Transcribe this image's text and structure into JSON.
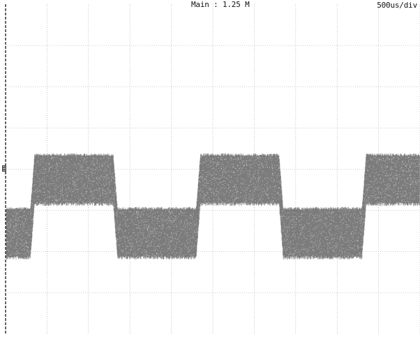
{
  "header": {
    "memory_label": "Main : 1.25 M",
    "timebase_label": "500us/div"
  },
  "display": {
    "background_color": "#ffffff",
    "grid_color": "#9a9a9a",
    "trace_color": "#6e6e6e",
    "divisions_x": 10,
    "divisions_y": 8
  },
  "waveform": {
    "type": "noisy-square-wave",
    "period_divisions": 4,
    "first_rising_edge_division": 0.6,
    "high_level_divisions": 4.3,
    "low_level_divisions": 3.0,
    "noise_band_divisions": 1.15
  }
}
